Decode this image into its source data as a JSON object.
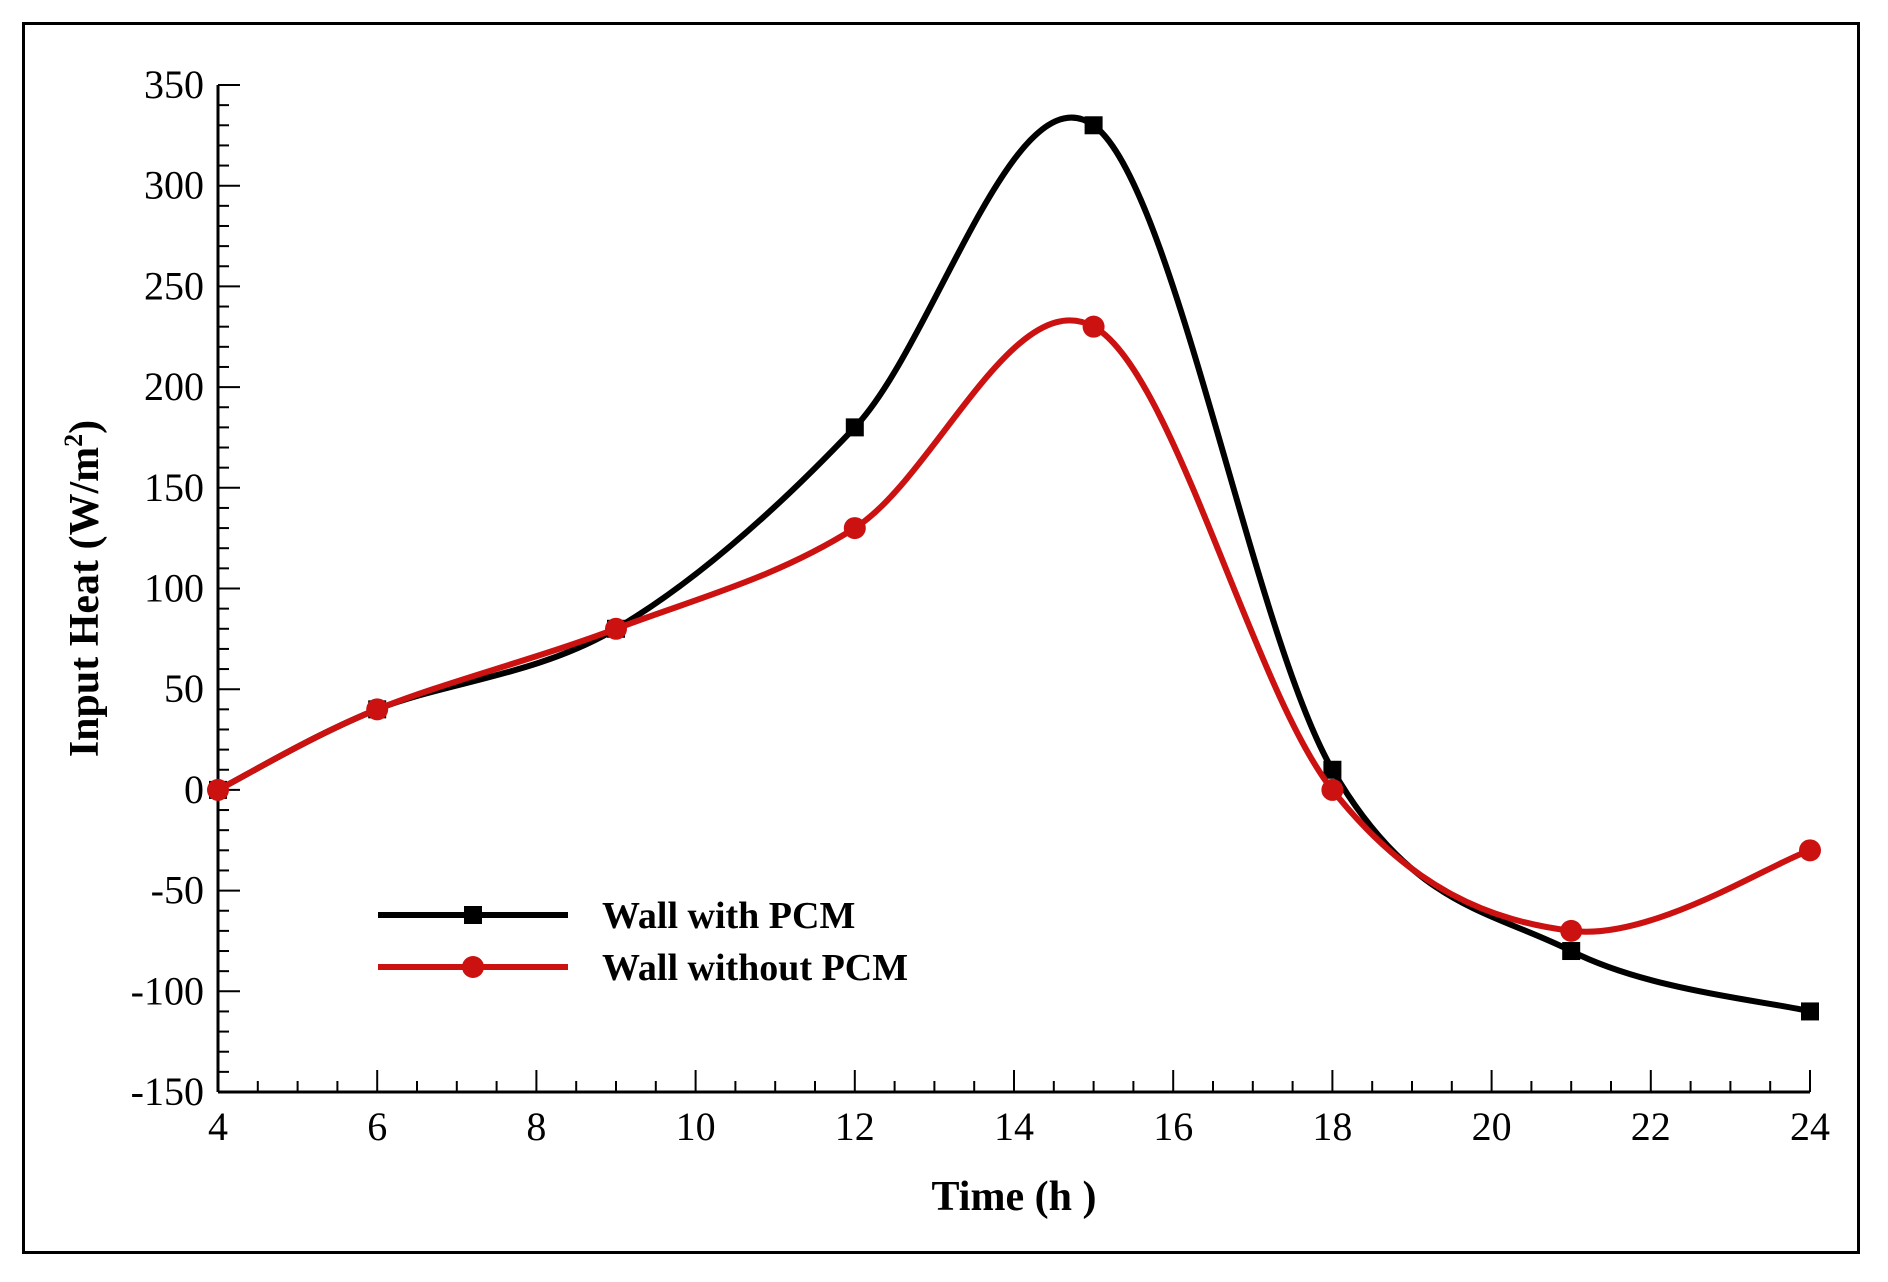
{
  "chart_data": {
    "type": "line",
    "title": "",
    "xlabel": "Time (h  )",
    "ylabel": "Input Heat (W/m",
    "ylabel_sup": "2",
    "ylabel_close": ")",
    "xlim": [
      4,
      24
    ],
    "ylim": [
      -150,
      350
    ],
    "xticks": [
      "4",
      "6",
      "8",
      "10",
      "12",
      "14",
      "16",
      "18",
      "20",
      "22",
      "24"
    ],
    "yticks": [
      "350",
      "300",
      "250",
      "200",
      "150",
      "100",
      "50",
      "0",
      "-50",
      "-100",
      "-150"
    ],
    "grid": false,
    "legend_position": "bottom-left",
    "series": [
      {
        "name": "Wall with PCM",
        "color": "#000000",
        "marker": "square",
        "x": [
          4,
          6,
          9,
          12,
          15,
          18,
          21,
          24
        ],
        "y": [
          0,
          40,
          80,
          180,
          330,
          10,
          -80,
          -110
        ]
      },
      {
        "name": "Wall without PCM",
        "color": "#cc1111",
        "marker": "circle",
        "x": [
          4,
          6,
          9,
          12,
          15,
          18,
          21,
          24
        ],
        "y": [
          0,
          40,
          80,
          130,
          230,
          0,
          -70,
          -30
        ]
      }
    ]
  }
}
